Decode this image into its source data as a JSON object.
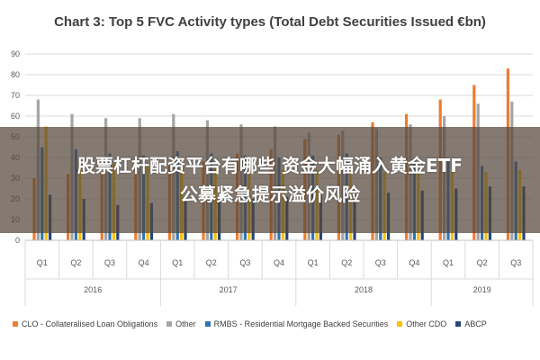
{
  "overlay": {
    "line1": "股票杠杆配资平台有哪些 资金大幅涌入黄金ETF",
    "line2": "公募紧急提示溢价风险"
  },
  "chart_data": {
    "type": "bar",
    "title": "Chart 3: Top 5 FVC Activity types (Total Debt Securities Issued €bn)",
    "ylim": [
      0,
      90
    ],
    "yticks": [
      0,
      10,
      20,
      30,
      40,
      50,
      60,
      70,
      80,
      90
    ],
    "grid": true,
    "legend_position": "bottom",
    "categories": [
      "Q1",
      "Q2",
      "Q3",
      "Q4",
      "Q1",
      "Q2",
      "Q3",
      "Q4",
      "Q1",
      "Q2",
      "Q3",
      "Q4",
      "Q1",
      "Q2",
      "Q3"
    ],
    "groups": [
      {
        "label": "2016",
        "count": 4
      },
      {
        "label": "2017",
        "count": 4
      },
      {
        "label": "2018",
        "count": 4
      },
      {
        "label": "2019",
        "count": 3
      }
    ],
    "series": [
      {
        "name": "CLO - Collateralised Loan Obligations",
        "color": "#ed7d31",
        "values": [
          30,
          32,
          33,
          35,
          36,
          38,
          42,
          44,
          49,
          51,
          57,
          61,
          68,
          75,
          83
        ]
      },
      {
        "name": "Other",
        "color": "#a5a5a5",
        "values": [
          68,
          61,
          59,
          59,
          61,
          58,
          56,
          55,
          52,
          53,
          54,
          56,
          60,
          66,
          67
        ]
      },
      {
        "name": "RMBS - Residential Mortgage Backed Securities",
        "color": "#2e75b6",
        "values": [
          45,
          44,
          42,
          41,
          43,
          42,
          41,
          40,
          41,
          42,
          40,
          39,
          38,
          36,
          38
        ]
      },
      {
        "name": "Other CDO",
        "color": "#ffc000",
        "values": [
          55,
          38,
          37,
          36,
          36,
          35,
          34,
          34,
          34,
          34,
          33,
          33,
          33,
          33,
          34
        ]
      },
      {
        "name": "ABCP",
        "color": "#264478",
        "values": [
          22,
          20,
          17,
          18,
          19,
          19,
          20,
          21,
          22,
          22,
          23,
          24,
          25,
          26,
          26
        ]
      }
    ]
  }
}
